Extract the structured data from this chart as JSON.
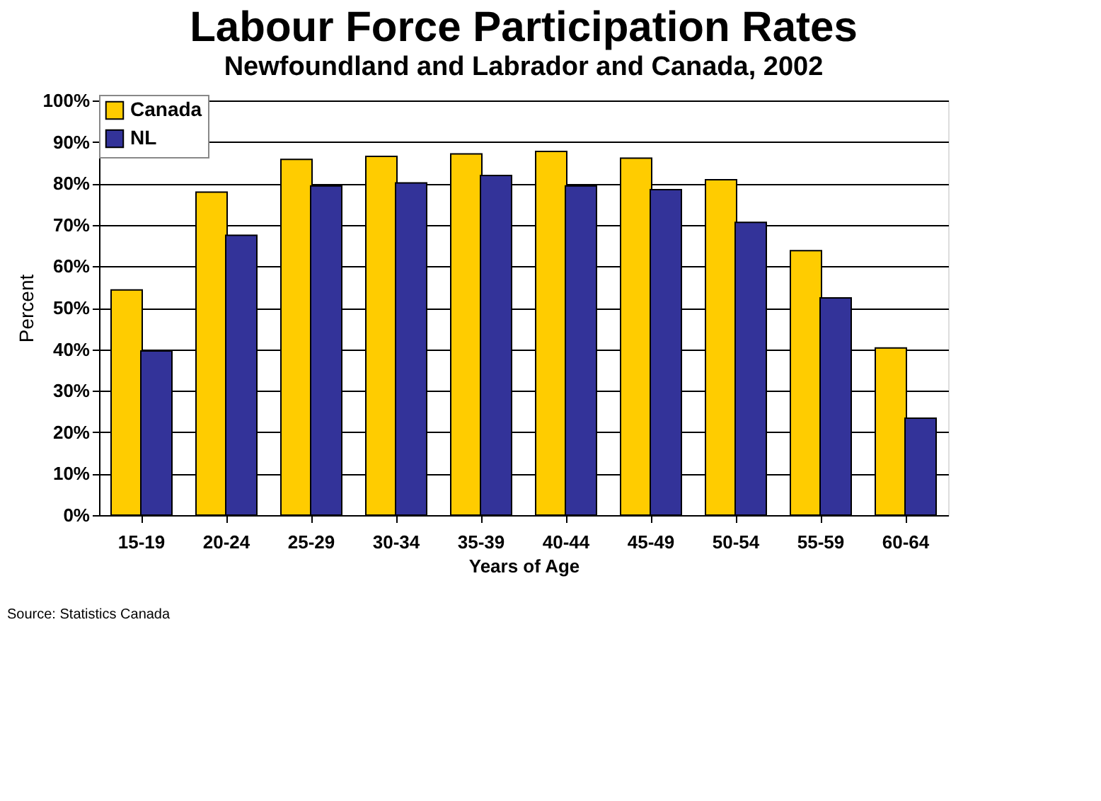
{
  "chart_data": {
    "type": "bar",
    "title": "Labour Force Participation Rates",
    "subtitle": "Newfoundland and Labrador and Canada, 2002",
    "xlabel": "Years of Age",
    "ylabel": "Percent",
    "categories": [
      "15-19",
      "20-24",
      "25-29",
      "30-34",
      "35-39",
      "40-44",
      "45-49",
      "50-54",
      "55-59",
      "60-64"
    ],
    "series": [
      {
        "name": "Canada",
        "color": "#ffcc00",
        "values": [
          54.3,
          77.9,
          85.8,
          86.5,
          87.1,
          87.7,
          86.1,
          80.9,
          63.8,
          40.3
        ]
      },
      {
        "name": "NL",
        "color": "#333399",
        "values": [
          39.6,
          67.5,
          79.4,
          80.1,
          81.9,
          79.4,
          78.5,
          70.6,
          52.4,
          23.4
        ]
      }
    ],
    "ylim": [
      0,
      100
    ],
    "yticks": [
      {
        "value": 0,
        "label": "0%"
      },
      {
        "value": 10,
        "label": "10%"
      },
      {
        "value": 20,
        "label": "20%"
      },
      {
        "value": 30,
        "label": "30%"
      },
      {
        "value": 40,
        "label": "40%"
      },
      {
        "value": 50,
        "label": "50%"
      },
      {
        "value": 60,
        "label": "60%"
      },
      {
        "value": 70,
        "label": "70%"
      },
      {
        "value": 80,
        "label": "80%"
      },
      {
        "value": 90,
        "label": "90%"
      },
      {
        "value": 100,
        "label": "100%"
      }
    ],
    "grid": "y",
    "legend": "top",
    "annotations": [
      "Source: Statistics Canada"
    ]
  }
}
